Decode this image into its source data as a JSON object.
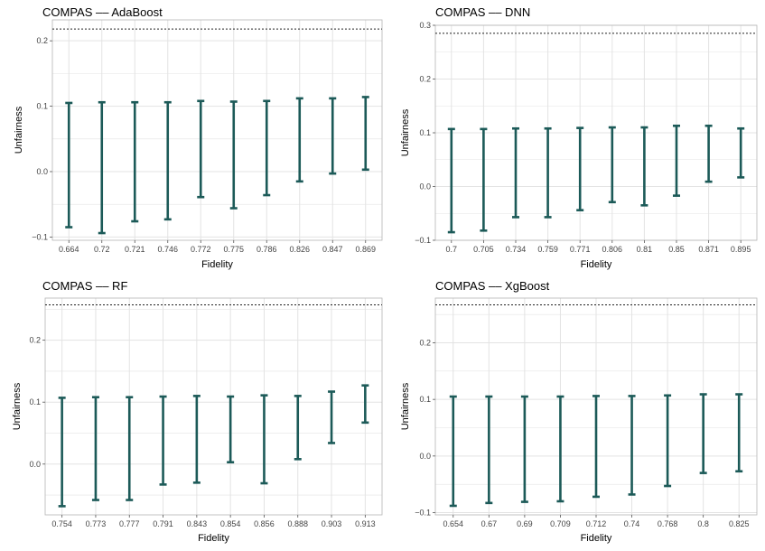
{
  "chart_data": [
    {
      "type": "errorbar",
      "title": "COMPAS –– AdaBoost",
      "xlabel": "Fidelity",
      "ylabel": "Unfairness",
      "categories": [
        "0.664",
        "0.72",
        "0.721",
        "0.746",
        "0.772",
        "0.775",
        "0.786",
        "0.826",
        "0.847",
        "0.869"
      ],
      "lower": [
        -0.085,
        -0.094,
        -0.076,
        -0.073,
        -0.039,
        -0.056,
        -0.036,
        -0.015,
        -0.003,
        0.003
      ],
      "upper": [
        0.105,
        0.106,
        0.106,
        0.106,
        0.108,
        0.107,
        0.108,
        0.112,
        0.112,
        0.114
      ],
      "reference_line": 0.218,
      "ylim": [
        -0.105,
        0.232
      ],
      "yticks": [
        -0.1,
        0.0,
        0.1,
        0.2
      ],
      "ytick_labels": [
        "−0.1",
        "0.0",
        "0.1",
        "0.2"
      ],
      "grid": true,
      "color": "#1c5a58"
    },
    {
      "type": "errorbar",
      "title": "COMPAS –– DNN",
      "xlabel": "Fidelity",
      "ylabel": "Unfairness",
      "categories": [
        "0.7",
        "0.705",
        "0.734",
        "0.759",
        "0.771",
        "0.806",
        "0.81",
        "0.85",
        "0.871",
        "0.895"
      ],
      "lower": [
        -0.085,
        -0.082,
        -0.057,
        -0.057,
        -0.044,
        -0.029,
        -0.035,
        -0.017,
        0.009,
        0.017
      ],
      "upper": [
        0.107,
        0.107,
        0.108,
        0.108,
        0.109,
        0.11,
        0.11,
        0.113,
        0.113,
        0.108
      ],
      "reference_line": 0.285,
      "ylim": [
        -0.1,
        0.3
      ],
      "yticks": [
        -0.1,
        0.0,
        0.1,
        0.2,
        0.3
      ],
      "ytick_labels": [
        "−0.1",
        "0.0",
        "0.1",
        "0.2",
        "0.3"
      ],
      "grid": true,
      "color": "#1c5a58"
    },
    {
      "type": "errorbar",
      "title": "COMPAS –– RF",
      "xlabel": "Fidelity",
      "ylabel": "Unfairness",
      "categories": [
        "0.754",
        "0.773",
        "0.777",
        "0.791",
        "0.843",
        "0.854",
        "0.856",
        "0.888",
        "0.903",
        "0.913"
      ],
      "lower": [
        -0.068,
        -0.058,
        -0.058,
        -0.033,
        -0.03,
        0.003,
        -0.031,
        0.008,
        0.034,
        0.067
      ],
      "upper": [
        0.107,
        0.108,
        0.108,
        0.109,
        0.11,
        0.109,
        0.111,
        0.11,
        0.117,
        0.127
      ],
      "reference_line": 0.257,
      "ylim": [
        -0.082,
        0.268
      ],
      "yticks": [
        0.0,
        0.1,
        0.2
      ],
      "ytick_labels": [
        "0.0",
        "0.1",
        "0.2"
      ],
      "grid": true,
      "color": "#1c5a58"
    },
    {
      "type": "errorbar",
      "title": "COMPAS –– XgBoost",
      "xlabel": "Fidelity",
      "ylabel": "Unfairness",
      "categories": [
        "0.654",
        "0.67",
        "0.69",
        "0.709",
        "0.712",
        "0.74",
        "0.768",
        "0.8",
        "0.825"
      ],
      "lower": [
        -0.088,
        -0.083,
        -0.081,
        -0.08,
        -0.072,
        -0.068,
        -0.053,
        -0.03,
        -0.027
      ],
      "upper": [
        0.105,
        0.105,
        0.105,
        0.105,
        0.106,
        0.106,
        0.107,
        0.109,
        0.109
      ],
      "reference_line": 0.267,
      "ylim": [
        -0.104,
        0.279
      ],
      "yticks": [
        -0.1,
        0.0,
        0.1,
        0.2
      ],
      "ytick_labels": [
        "−0.1",
        "0.0",
        "0.1",
        "0.2"
      ],
      "grid": true,
      "color": "#1c5a58"
    }
  ]
}
